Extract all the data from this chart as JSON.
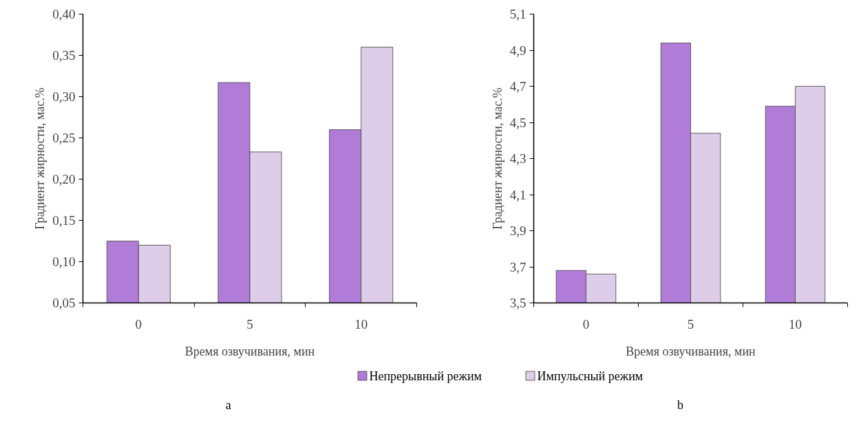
{
  "chart_data": [
    {
      "type": "bar",
      "xlabel": "Время озвучивания, мин",
      "ylabel": "Градиент жирности, мас.%",
      "categories": [
        "0",
        "5",
        "10"
      ],
      "series": [
        {
          "name": "Непрерывный режим",
          "color": "#b07cd8",
          "values": [
            0.125,
            0.317,
            0.26
          ]
        },
        {
          "name": "Импульсный режим",
          "color": "#ddcde8",
          "values": [
            0.12,
            0.233,
            0.36
          ]
        }
      ],
      "ylim": [
        0.05,
        0.4
      ],
      "yticks": [
        {
          "value": 0.05,
          "label": "0,05"
        },
        {
          "value": 0.1,
          "label": "0,10"
        },
        {
          "value": 0.15,
          "label": "0,15"
        },
        {
          "value": 0.2,
          "label": "0,20"
        },
        {
          "value": 0.25,
          "label": "0,25"
        },
        {
          "value": 0.3,
          "label": "0,30"
        },
        {
          "value": 0.35,
          "label": "0,35"
        },
        {
          "value": 0.4,
          "label": "0,40"
        }
      ],
      "grid": false,
      "legend": "bottom",
      "annotations": [
        "a"
      ]
    },
    {
      "type": "bar",
      "xlabel": "Время озвучивания, мин",
      "ylabel": "Градиент жирности, мас.%",
      "categories": [
        "0",
        "5",
        "10"
      ],
      "series": [
        {
          "color": "#b07cd8",
          "values": [
            3.68,
            4.94,
            4.59
          ]
        },
        {
          "color": "#ddcde8",
          "values": [
            3.66,
            4.44,
            4.7
          ]
        }
      ],
      "ylim": [
        3.5,
        5.1
      ],
      "yticks": [
        {
          "value": 3.5,
          "label": "3,5"
        },
        {
          "value": 3.7,
          "label": "3,7"
        },
        {
          "value": 3.9,
          "label": "3,9"
        },
        {
          "value": 4.1,
          "label": "4,1"
        },
        {
          "value": 4.3,
          "label": "4,3"
        },
        {
          "value": 4.5,
          "label": "4,5"
        },
        {
          "value": 4.7,
          "label": "4,7"
        },
        {
          "value": 4.9,
          "label": "4,9"
        },
        {
          "value": 5.1,
          "label": "5,1"
        }
      ],
      "grid": false,
      "annotations": [
        "b"
      ]
    }
  ]
}
